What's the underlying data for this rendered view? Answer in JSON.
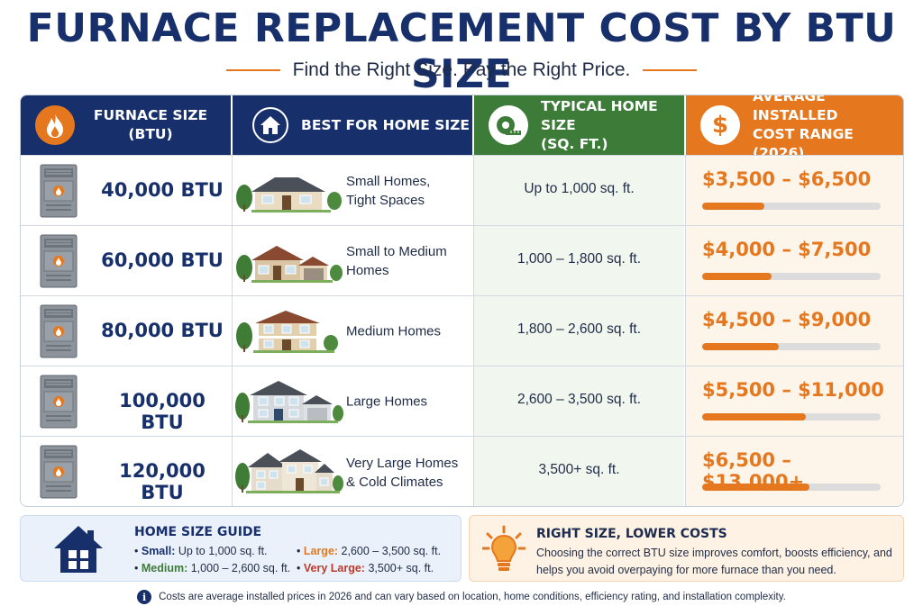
{
  "title": "FURNACE REPLACEMENT COST BY BTU SIZE",
  "subtitle": "Find the Right Size. Pay the Right Price.",
  "headers": {
    "col1": "FURNACE SIZE\n(BTU)",
    "col2": "BEST FOR HOME SIZE",
    "col3": "TYPICAL HOME SIZE\n(SQ. FT.)",
    "col4": "AVERAGE INSTALLED\nCOST RANGE (2026)",
    "col1_icon": "flame-icon",
    "col2_icon": "house-icon",
    "col3_icon": "tape-measure-icon",
    "col4_icon": "dollar-icon"
  },
  "rows": [
    {
      "btu": "40,000 BTU",
      "home": "Small Homes,\nTight Spaces",
      "sqft": "Up to 1,000 sq. ft.",
      "price": "$3,500 – $6,500",
      "bar_fraction": 0.35
    },
    {
      "btu": "60,000 BTU",
      "home": "Small to Medium\nHomes",
      "sqft": "1,000 – 1,800 sq. ft.",
      "price": "$4,000 – $7,500",
      "bar_fraction": 0.39
    },
    {
      "btu": "80,000 BTU",
      "home": "Medium Homes",
      "sqft": "1,800 – 2,600 sq. ft.",
      "price": "$4,500 – $9,000",
      "bar_fraction": 0.43
    },
    {
      "btu": "100,000 BTU",
      "home": "Large Homes",
      "sqft": "2,600 – 3,500 sq. ft.",
      "price": "$5,500 – $11,000",
      "bar_fraction": 0.58
    },
    {
      "btu": "120,000 BTU",
      "home": "Very Large Homes\n& Cold Climates",
      "sqft": "3,500+ sq. ft.",
      "price": "$6,500 – $13,000+",
      "bar_fraction": 0.6
    }
  ],
  "guide": {
    "title": "HOME SIZE GUIDE",
    "items": [
      {
        "label": "Small:",
        "value": "Up to 1,000 sq. ft.",
        "color": "#17306b"
      },
      {
        "label": "Medium:",
        "value": "1,000 – 2,600 sq. ft.",
        "color": "#3d7b38"
      },
      {
        "label": "Large:",
        "value": "2,600 – 3,500 sq. ft.",
        "color": "#e5781e"
      },
      {
        "label": "Very Large:",
        "value": "3,500+ sq. ft.",
        "color": "#c0392b"
      }
    ]
  },
  "tip": {
    "title": "RIGHT SIZE, LOWER COSTS",
    "text": "Choosing the correct BTU size improves comfort, boosts efficiency, and helps you avoid overpaying for more furnace than you need.",
    "icon": "lightbulb-icon"
  },
  "footnote": "Costs are average installed prices in 2026 and can vary based on location, home conditions, efficiency rating, and installation complexity.",
  "colors": {
    "navy": "#17306b",
    "green": "#3d7b38",
    "orange": "#e5781e"
  }
}
